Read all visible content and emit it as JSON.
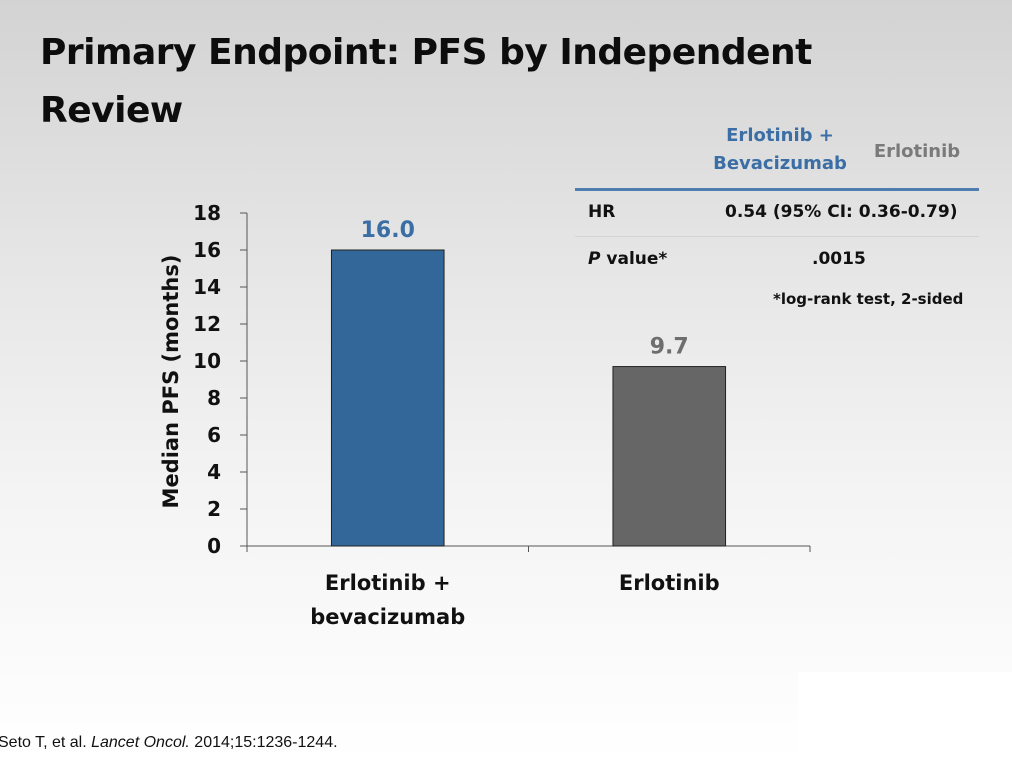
{
  "slide": {
    "title": "Primary Endpoint: PFS by Independent Review"
  },
  "chart_data": {
    "type": "bar",
    "categories": [
      [
        "Erlotinib +",
        "bevacizumab"
      ],
      [
        "Erlotinib"
      ]
    ],
    "values": [
      16.0,
      9.7
    ],
    "data_labels": [
      "16.0",
      "9.7"
    ],
    "bar_colors": [
      "#336699",
      "#666666"
    ],
    "label_colors": [
      "#3a6ea5",
      "#6e6e6e"
    ],
    "title": "",
    "xlabel": "",
    "ylabel": "Median PFS (months)",
    "ylim": [
      0,
      18
    ],
    "yticks": [
      0,
      2,
      4,
      6,
      8,
      10,
      12,
      14,
      16,
      18
    ],
    "grid": false,
    "legend": "none"
  },
  "stats_table": {
    "headers": [
      "Erlotinib + Bevacizumab",
      "Erlotinib"
    ],
    "header_lines": [
      "Erlotinib +",
      "Bevacizumab"
    ],
    "rows": [
      {
        "label": "HR",
        "value": "0.54 (95% CI: 0.36-0.79)"
      },
      {
        "label_italic": "P",
        "label_rest": " value*",
        "value": ".0015"
      }
    ],
    "footnote": "*log-rank test, 2-sided"
  },
  "citation": {
    "authors": "Seto T, et al.",
    "journal": "Lancet Oncol.",
    "details": "2014;15:1236-1244."
  },
  "colors": {
    "header_blue": "#3a6ea5",
    "header_gray": "#7a7a7a",
    "rule": "#4f7db0"
  }
}
